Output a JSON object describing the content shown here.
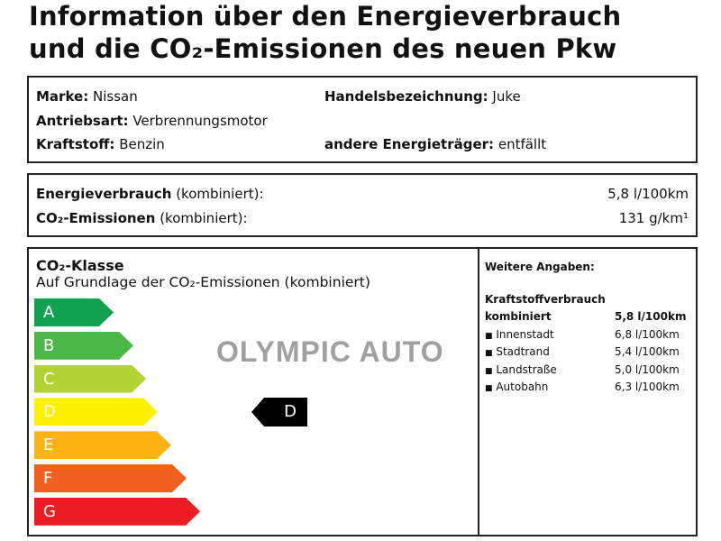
{
  "title": {
    "line1": "Information über den Energieverbrauch",
    "line2": "und die CO₂-Emissionen des neuen Pkw"
  },
  "vehicle": {
    "marke_label": "Marke:",
    "marke": "Nissan",
    "handel_label": "Handelsbezeichnung:",
    "handel": "Juke",
    "antrieb_label": "Antriebsart:",
    "antrieb": "Verbrennungsmotor",
    "kraftstoff_label": "Kraftstoff:",
    "kraftstoff": "Benzin",
    "andere_label": "andere Energieträger:",
    "andere": "entfällt"
  },
  "consumption": {
    "energie_label": "Energieverbrauch",
    "energie_suffix": "(kombiniert):",
    "energie_value": "5,8 l/100km",
    "co2_label": "CO₂-Emissionen",
    "co2_suffix": "(kombiniert):",
    "co2_value": "131 g/km¹"
  },
  "co2class": {
    "title": "CO₂-Klasse",
    "subtitle": "Auf Grundlage der CO₂-Emissionen (kombiniert)",
    "classes": [
      {
        "label": "A",
        "color": "#12a150"
      },
      {
        "label": "B",
        "color": "#4cb848"
      },
      {
        "label": "C",
        "color": "#b3d334"
      },
      {
        "label": "D",
        "color": "#fff200"
      },
      {
        "label": "E",
        "color": "#fbb316"
      },
      {
        "label": "F",
        "color": "#f0601f"
      },
      {
        "label": "G",
        "color": "#ec1c24"
      }
    ],
    "current": "D"
  },
  "watermark": "OLYMPIC AUTO",
  "details": {
    "heading": "Weitere Angaben:",
    "section": "Kraftstoffverbrauch",
    "combined_label": "kombiniert",
    "combined_value": "5,8 l/100km",
    "rows": [
      {
        "label": "Innenstadt",
        "value": "6,8 l/100km"
      },
      {
        "label": "Stadtrand",
        "value": "5,4 l/100km"
      },
      {
        "label": "Landstraße",
        "value": "5,0 l/100km"
      },
      {
        "label": "Autobahn",
        "value": "6,3 l/100km"
      }
    ]
  }
}
